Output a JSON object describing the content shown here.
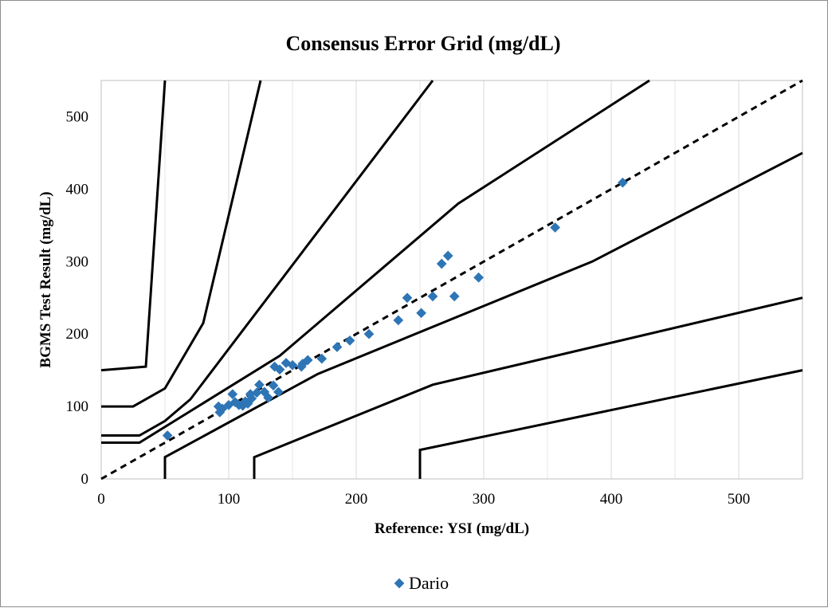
{
  "chart_data": {
    "type": "scatter",
    "title": "Consensus Error Grid (mg/dL)",
    "xlabel": "Reference: YSI (mg/dL)",
    "ylabel": "BGMS Test Result (mg/dL)",
    "xlim": [
      0,
      550
    ],
    "ylim": [
      0,
      550
    ],
    "x_ticks": [
      0,
      100,
      200,
      300,
      400,
      500
    ],
    "y_ticks": [
      0,
      100,
      200,
      300,
      400,
      500
    ],
    "x_grid": true,
    "y_grid": false,
    "legend_position": "bottom",
    "identity_line": {
      "style": "dashed",
      "points": [
        [
          0,
          0
        ],
        [
          550,
          550
        ]
      ]
    },
    "zone_lines": [
      {
        "points": [
          [
            0,
            150
          ],
          [
            35,
            155
          ],
          [
            50,
            550
          ]
        ]
      },
      {
        "points": [
          [
            0,
            100
          ],
          [
            25,
            100
          ],
          [
            50,
            125
          ],
          [
            80,
            215
          ],
          [
            125,
            550
          ]
        ]
      },
      {
        "points": [
          [
            0,
            60
          ],
          [
            30,
            60
          ],
          [
            50,
            80
          ],
          [
            70,
            110
          ],
          [
            260,
            550
          ]
        ]
      },
      {
        "points": [
          [
            0,
            50
          ],
          [
            30,
            50
          ],
          [
            140,
            170
          ],
          [
            280,
            380
          ],
          [
            430,
            550
          ]
        ]
      },
      {
        "points": [
          [
            50,
            0
          ],
          [
            50,
            30
          ],
          [
            170,
            145
          ],
          [
            385,
            300
          ],
          [
            550,
            450
          ]
        ]
      },
      {
        "points": [
          [
            120,
            0
          ],
          [
            120,
            30
          ],
          [
            260,
            130
          ],
          [
            550,
            250
          ]
        ]
      },
      {
        "points": [
          [
            250,
            0
          ],
          [
            250,
            40
          ],
          [
            550,
            150
          ]
        ]
      }
    ],
    "series": [
      {
        "name": "Dario",
        "color": "#2E75B6",
        "points": [
          [
            52,
            60
          ],
          [
            92,
            100
          ],
          [
            93,
            92
          ],
          [
            95,
            97
          ],
          [
            100,
            102
          ],
          [
            103,
            117
          ],
          [
            105,
            106
          ],
          [
            108,
            102
          ],
          [
            111,
            101
          ],
          [
            113,
            107
          ],
          [
            115,
            104
          ],
          [
            117,
            117
          ],
          [
            118,
            111
          ],
          [
            122,
            119
          ],
          [
            124,
            130
          ],
          [
            128,
            120
          ],
          [
            131,
            112
          ],
          [
            135,
            129
          ],
          [
            136,
            155
          ],
          [
            139,
            120
          ],
          [
            140,
            151
          ],
          [
            145,
            160
          ],
          [
            150,
            157
          ],
          [
            157,
            155
          ],
          [
            158,
            159
          ],
          [
            162,
            164
          ],
          [
            173,
            166
          ],
          [
            185,
            182
          ],
          [
            195,
            191
          ],
          [
            210,
            200
          ],
          [
            233,
            219
          ],
          [
            240,
            250
          ],
          [
            251,
            229
          ],
          [
            260,
            252
          ],
          [
            267,
            297
          ],
          [
            272,
            308
          ],
          [
            277,
            252
          ],
          [
            296,
            278
          ],
          [
            356,
            347
          ],
          [
            409,
            409
          ]
        ]
      }
    ]
  }
}
